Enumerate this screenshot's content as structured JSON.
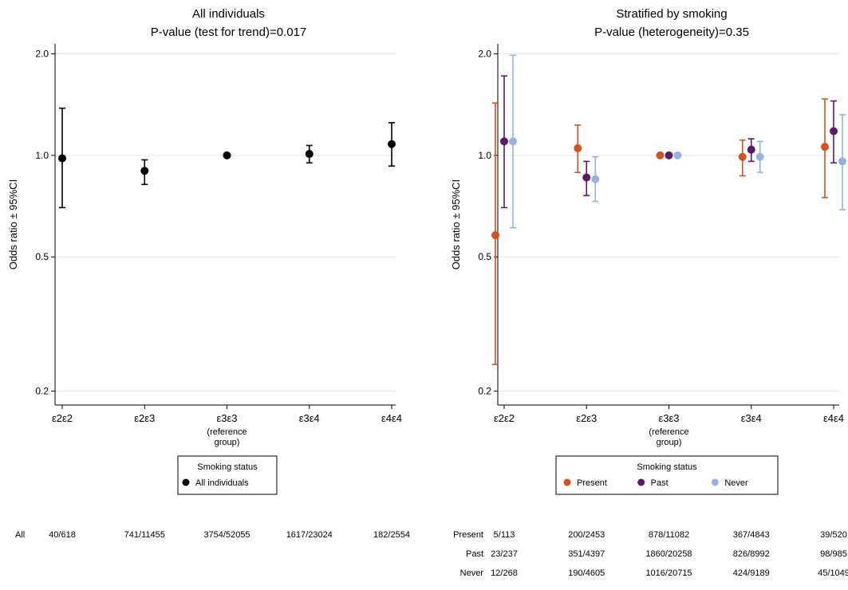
{
  "chart_data": [
    {
      "type": "scatter",
      "title": "All individuals",
      "subtitle": "P-value (test for trend)=0.017",
      "ylabel": "Odds ratio ± 95%CI",
      "yscale": "log",
      "ylim": [
        0.19,
        2.05
      ],
      "yticks": [
        "0.2",
        "0.5",
        "1.0",
        "2.0"
      ],
      "categories": [
        "ε2ε2",
        "ε2ε3",
        "ε3ε3",
        "ε3ε4",
        "ε4ε4"
      ],
      "reference_note": "(reference group)",
      "reference_index": 2,
      "grid": true,
      "legend": {
        "title": "Smoking status",
        "placement": "bottom-center"
      },
      "series": [
        {
          "name": "All individuals",
          "color": "#000000",
          "points": [
            {
              "est": 0.98,
              "lo": 0.7,
              "hi": 1.38
            },
            {
              "est": 0.9,
              "lo": 0.82,
              "hi": 0.97
            },
            {
              "est": 1.0
            },
            {
              "est": 1.01,
              "lo": 0.95,
              "hi": 1.07
            },
            {
              "est": 1.08,
              "lo": 0.93,
              "hi": 1.25
            }
          ]
        }
      ],
      "counts": [
        {
          "label": "All",
          "values": [
            "40/618",
            "741/11455",
            "3754/52055",
            "1617/23024",
            "182/2554"
          ]
        }
      ]
    },
    {
      "type": "scatter",
      "title": "Stratified by smoking",
      "subtitle": "P-value (heterogeneity)=0.35",
      "ylabel": "Odds ratio ± 95%CI",
      "yscale": "log",
      "ylim": [
        0.19,
        2.05
      ],
      "yticks": [
        "0.2",
        "0.5",
        "1.0",
        "2.0"
      ],
      "categories": [
        "ε2ε2",
        "ε2ε3",
        "ε3ε3",
        "ε3ε4",
        "ε4ε4"
      ],
      "reference_note": "(reference group)",
      "reference_index": 2,
      "grid": true,
      "legend": {
        "title": "Smoking status",
        "placement": "bottom-center"
      },
      "series": [
        {
          "name": "Present",
          "color": "#d4501f",
          "points": [
            {
              "est": 0.58,
              "lo": 0.24,
              "hi": 1.43
            },
            {
              "est": 1.05,
              "lo": 0.89,
              "hi": 1.23
            },
            {
              "est": 1.0
            },
            {
              "est": 0.99,
              "lo": 0.87,
              "hi": 1.11
            },
            {
              "est": 1.06,
              "lo": 0.75,
              "hi": 1.47
            }
          ]
        },
        {
          "name": "Past",
          "color": "#5a1a66",
          "points": [
            {
              "est": 1.1,
              "lo": 0.7,
              "hi": 1.72
            },
            {
              "est": 0.86,
              "lo": 0.76,
              "hi": 0.96
            },
            {
              "est": 1.0
            },
            {
              "est": 1.04,
              "lo": 0.96,
              "hi": 1.12
            },
            {
              "est": 1.18,
              "lo": 0.95,
              "hi": 1.45
            }
          ]
        },
        {
          "name": "Never",
          "color": "#93b3e3",
          "points": [
            {
              "est": 1.1,
              "lo": 0.61,
              "hi": 1.98
            },
            {
              "est": 0.85,
              "lo": 0.73,
              "hi": 0.99
            },
            {
              "est": 1.0
            },
            {
              "est": 0.99,
              "lo": 0.89,
              "hi": 1.1
            },
            {
              "est": 0.96,
              "lo": 0.69,
              "hi": 1.32
            }
          ]
        }
      ],
      "counts": [
        {
          "label": "Present",
          "values": [
            "5/113",
            "200/2453",
            "878/11082",
            "367/4843",
            "39/520"
          ]
        },
        {
          "label": "Past",
          "values": [
            "23/237",
            "351/4397",
            "1860/20258",
            "826/8992",
            "98/985"
          ]
        },
        {
          "label": "Never",
          "values": [
            "12/268",
            "190/4605",
            "1016/20715",
            "424/9189",
            "45/1049"
          ]
        }
      ]
    }
  ]
}
